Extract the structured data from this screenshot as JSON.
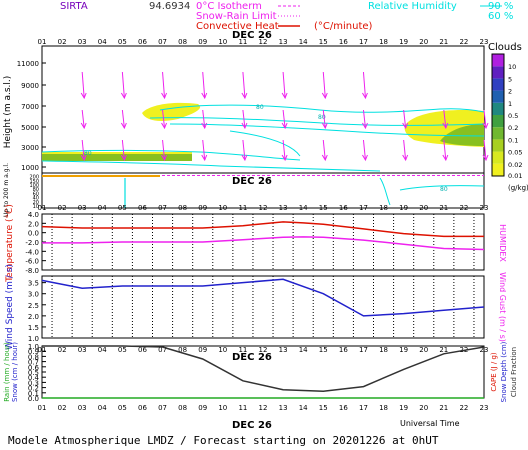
{
  "header": {
    "station": "SIRTA",
    "coords": "94.6934",
    "legend_isotherm": "0°C Isotherm",
    "legend_snow_rain": "Snow-Rain Limit",
    "legend_convective": "Convective Heat",
    "legend_convective_unit": "(°C/minute)",
    "legend_rh": "Relative Humidity",
    "rh_90": "90 %",
    "rh_60": "60 %"
  },
  "hours": [
    "01",
    "02",
    "03",
    "04",
    "05",
    "06",
    "07",
    "08",
    "09",
    "10",
    "11",
    "12",
    "13",
    "14",
    "15",
    "16",
    "17",
    "18",
    "19",
    "20",
    "21",
    "22",
    "23"
  ],
  "date_label": "DEC 26",
  "footer": {
    "universal_time": "Universal Time",
    "model_line": "Modele Atmospherique LMDZ / Forecast starting on 20201226 at 0hUT"
  },
  "colors": {
    "purple": "#cc00ff",
    "dark_purple": "#7700bb",
    "cyan": "#00e0e0",
    "magenta": "#ee22ee",
    "red": "#dd1100",
    "blue": "#2222cc",
    "yellow": "#f0f020",
    "green": "#88c020"
  },
  "chart_data": [
    {
      "type": "area",
      "name_label": "Clouds",
      "ylabel": "Height  (m a.s.l.)",
      "ylabel_lower": "Up to 200 m a.g.l.",
      "y_ticks": [
        "1000",
        "3000",
        "5000",
        "7000",
        "9000",
        "11000"
      ],
      "y_ticks_lower": [
        "10",
        "20",
        "40",
        "60",
        "80",
        "100",
        "150",
        "200"
      ],
      "colorbar_ticks": [
        "0.01",
        "0.02",
        "0.05",
        "0.1",
        "0.2",
        "0.5",
        "1",
        "2",
        "5",
        "10"
      ],
      "colorbar_unit": "(g/kg)",
      "contour_label": "80",
      "colorbar_colors": [
        "#f0f020",
        "#d8e820",
        "#a8d020",
        "#70b830",
        "#40a040",
        "#208880",
        "#2060b0",
        "#3040c0",
        "#6020c0",
        "#b020e0"
      ]
    },
    {
      "type": "line",
      "ylabel": "Temperature (°C)",
      "ylabel_right": "HUMIDEX",
      "y_ticks": [
        "-8.0",
        "-6.0",
        "-4.0",
        "-2.0",
        "0.0",
        "2.0",
        "4.0"
      ],
      "ylim": [
        -8,
        4
      ],
      "series": [
        {
          "name": "Temperature",
          "color": "#dd1100",
          "x": [
            1,
            3,
            5,
            7,
            9,
            11,
            13,
            14,
            15,
            17,
            19,
            21,
            23
          ],
          "y": [
            1.3,
            1.0,
            1.0,
            1.0,
            1.0,
            1.5,
            2.3,
            2.1,
            1.8,
            0.8,
            -0.2,
            -0.8,
            -0.8
          ]
        },
        {
          "name": "Humidex",
          "color": "#ee22ee",
          "x": [
            1,
            3,
            5,
            7,
            9,
            11,
            13,
            14,
            15,
            17,
            19,
            21,
            23
          ],
          "y": [
            -2.2,
            -2.2,
            -2.0,
            -2.0,
            -2.0,
            -1.5,
            -1.0,
            -0.9,
            -1.0,
            -1.6,
            -2.5,
            -3.4,
            -3.6
          ]
        }
      ]
    },
    {
      "type": "line",
      "ylabel": "Wind Speed (m / s)",
      "ylabel_right": "Wind Gust (m / s)",
      "y_ticks": [
        "1.0",
        "1.5",
        "2.0",
        "2.5",
        "3.0",
        "3.5"
      ],
      "ylim": [
        1.0,
        3.8
      ],
      "series": [
        {
          "name": "Wind Speed",
          "color": "#2222cc",
          "x": [
            1,
            3,
            5,
            7,
            9,
            11,
            13,
            15,
            17,
            19,
            21,
            23
          ],
          "y": [
            3.6,
            3.25,
            3.35,
            3.35,
            3.35,
            3.5,
            3.65,
            3.0,
            2.0,
            2.1,
            2.25,
            2.4
          ]
        }
      ]
    },
    {
      "type": "line",
      "ylabel_left_1": "Rain (mm / hour)",
      "ylabel_left_2": "Snow (cm / hour)",
      "ylabel_right_1": "CAPE (J / g)",
      "ylabel_right_2": "Snow Depth (cm)",
      "ylabel_right_3": "Cloud Fraction",
      "y_ticks": [
        "0.0",
        "0.1",
        "0.2",
        "0.3",
        "0.4",
        "0.5",
        "0.6",
        "0.7",
        "0.8",
        "0.9",
        "1.0"
      ],
      "ylim": [
        0,
        1
      ],
      "series": [
        {
          "name": "Cloud Fraction",
          "color": "#333333",
          "x": [
            1,
            3,
            5,
            7,
            9,
            11,
            13,
            15,
            17,
            19,
            21,
            23
          ],
          "y": [
            1.0,
            1.0,
            1.0,
            0.98,
            0.75,
            0.33,
            0.16,
            0.13,
            0.22,
            0.55,
            0.85,
            0.98
          ]
        },
        {
          "name": "Rain",
          "color": "#22aa22",
          "x": [
            1,
            23
          ],
          "y": [
            0.0,
            0.0
          ]
        }
      ]
    }
  ]
}
